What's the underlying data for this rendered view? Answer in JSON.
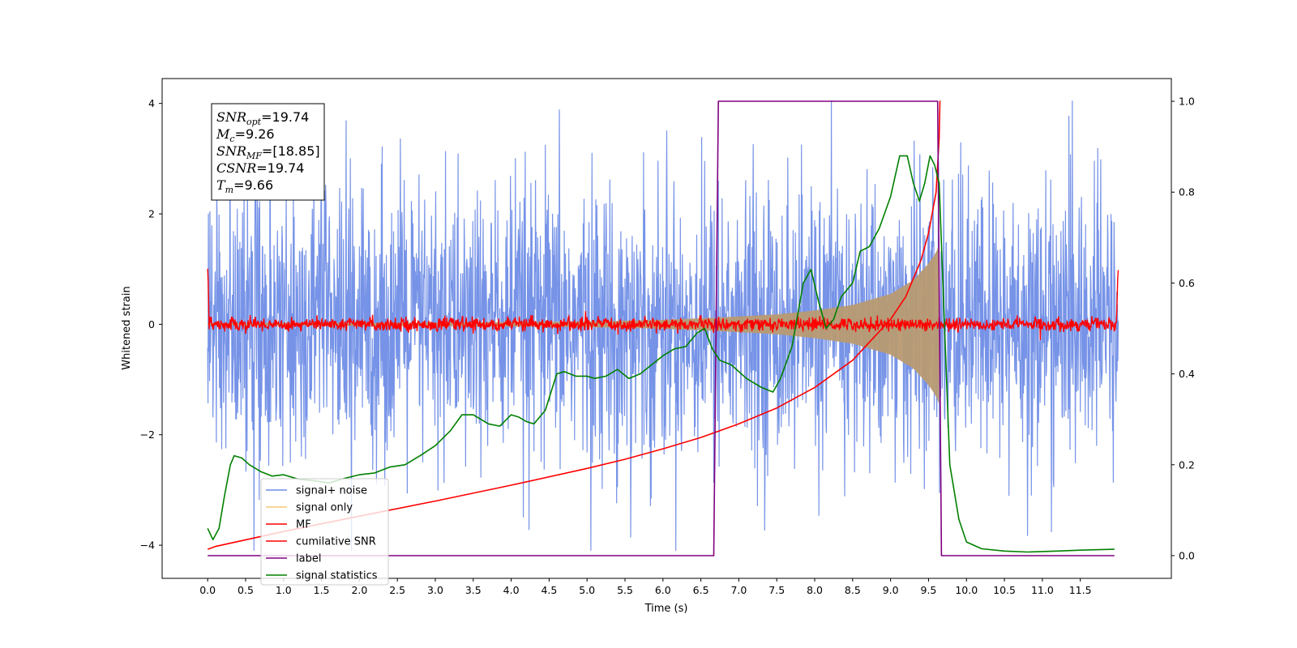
{
  "chart_data": {
    "type": "line",
    "title": "",
    "xlabel": "Time (s)",
    "ylabel": "Whitened strain",
    "xlim": [
      -0.6,
      12.7
    ],
    "ylim": [
      -4.6,
      4.45
    ],
    "y2lim": [
      -0.05,
      1.05
    ],
    "x_ticks": [
      0.0,
      0.5,
      1.0,
      1.5,
      2.0,
      2.5,
      3.0,
      3.5,
      4.0,
      4.5,
      5.0,
      5.5,
      6.0,
      6.5,
      7.0,
      7.5,
      8.0,
      8.5,
      9.0,
      9.5,
      10.0,
      10.5,
      11.0,
      11.5
    ],
    "x_tick_labels": [
      "0.0",
      "0.5",
      "1.0",
      "1.5",
      "2.0",
      "2.5",
      "3.0",
      "3.5",
      "4.0",
      "4.5",
      "5.0",
      "5.5",
      "6.0",
      "6.5",
      "7.0",
      "7.5",
      "8.0",
      "8.5",
      "9.0",
      "9.5",
      "10.0",
      "10.5",
      "11.0",
      "11.5"
    ],
    "y_ticks": [
      -4,
      -2,
      0,
      2,
      4
    ],
    "y_tick_labels": [
      "−4",
      "−2",
      "0",
      "2",
      "4"
    ],
    "y2_ticks": [
      0.0,
      0.2,
      0.4,
      0.6,
      0.8,
      1.0
    ],
    "y2_tick_labels": [
      "0.0",
      "0.2",
      "0.4",
      "0.6",
      "0.8",
      "1.0"
    ],
    "grid": false,
    "legend_position": "bottom-left",
    "colors": {
      "noise": "#6f8de6",
      "signal": "#f5c775",
      "signal_fill": "#b89a72",
      "mf": "#ff0000",
      "csnr": "#ff0000",
      "label": "#800080",
      "stats": "#008000"
    },
    "series": [
      {
        "name": "signal+ noise",
        "axis": "left",
        "color": "#6f8de6",
        "envelope": {
          "x_start": 0.0,
          "x_end": 12.0,
          "typical_amplitude": 2.0,
          "max": 4.05,
          "min": -4.1
        }
      },
      {
        "name": "signal only",
        "axis": "left",
        "color": "#f5c775",
        "envelope": {
          "x": [
            0.0,
            3.0,
            5.0,
            6.0,
            6.7,
            7.5,
            8.0,
            8.5,
            9.0,
            9.3,
            9.5,
            9.6,
            9.64
          ],
          "amplitude": [
            0.02,
            0.03,
            0.05,
            0.08,
            0.12,
            0.18,
            0.25,
            0.35,
            0.55,
            0.8,
            1.1,
            1.3,
            1.45
          ]
        }
      },
      {
        "name": "MF",
        "axis": "left",
        "color": "#ff0000",
        "x": [
          0.0,
          0.02,
          0.05,
          0.1,
          11.97,
          12.0
        ],
        "y": [
          1.0,
          0.1,
          0.0,
          0.0,
          0.0,
          0.9
        ],
        "noise_amplitude": 0.06
      },
      {
        "name": "cumilative SNR",
        "axis": "right",
        "color": "#ff0000",
        "x": [
          0.0,
          0.1,
          1.0,
          2.0,
          3.0,
          4.0,
          5.0,
          5.5,
          6.0,
          6.5,
          7.0,
          7.5,
          8.0,
          8.5,
          9.0,
          9.2,
          9.4,
          9.5,
          9.6,
          9.64,
          9.65,
          9.66
        ],
        "y": [
          0.014,
          0.02,
          0.053,
          0.087,
          0.12,
          0.155,
          0.192,
          0.212,
          0.235,
          0.26,
          0.29,
          0.325,
          0.37,
          0.43,
          0.52,
          0.57,
          0.65,
          0.71,
          0.8,
          0.92,
          1.0,
          1.0
        ]
      },
      {
        "name": "label",
        "axis": "right",
        "color": "#800080",
        "x": [
          0.0,
          6.67,
          6.73,
          9.62,
          9.67,
          11.95
        ],
        "y": [
          0.0,
          0.0,
          1.0,
          1.0,
          0.0,
          0.0
        ]
      },
      {
        "name": "signal statistics",
        "axis": "right",
        "color": "#008000",
        "x": [
          0.0,
          0.07,
          0.15,
          0.22,
          0.3,
          0.35,
          0.45,
          0.55,
          0.7,
          0.85,
          1.0,
          1.2,
          1.4,
          1.6,
          1.8,
          2.0,
          2.2,
          2.4,
          2.6,
          2.8,
          3.0,
          3.2,
          3.35,
          3.5,
          3.6,
          3.7,
          3.85,
          4.0,
          4.1,
          4.2,
          4.3,
          4.45,
          4.6,
          4.7,
          4.85,
          5.0,
          5.1,
          5.25,
          5.4,
          5.55,
          5.7,
          5.85,
          6.0,
          6.15,
          6.3,
          6.45,
          6.55,
          6.65,
          6.75,
          6.9,
          7.1,
          7.3,
          7.45,
          7.55,
          7.7,
          7.85,
          7.95,
          8.05,
          8.15,
          8.25,
          8.35,
          8.5,
          8.6,
          8.72,
          8.85,
          9.0,
          9.12,
          9.22,
          9.3,
          9.38,
          9.45,
          9.52,
          9.58,
          9.64,
          9.7,
          9.78,
          9.9,
          10.0,
          10.2,
          10.5,
          10.8,
          11.2,
          11.5,
          11.95
        ],
        "y": [
          0.06,
          0.035,
          0.06,
          0.13,
          0.2,
          0.22,
          0.215,
          0.2,
          0.185,
          0.175,
          0.178,
          0.168,
          0.165,
          0.16,
          0.17,
          0.178,
          0.182,
          0.195,
          0.2,
          0.22,
          0.242,
          0.275,
          0.31,
          0.31,
          0.3,
          0.29,
          0.285,
          0.31,
          0.305,
          0.295,
          0.29,
          0.32,
          0.4,
          0.405,
          0.395,
          0.395,
          0.39,
          0.395,
          0.41,
          0.39,
          0.4,
          0.42,
          0.44,
          0.455,
          0.46,
          0.49,
          0.5,
          0.455,
          0.43,
          0.42,
          0.39,
          0.37,
          0.36,
          0.39,
          0.46,
          0.6,
          0.63,
          0.56,
          0.5,
          0.52,
          0.57,
          0.6,
          0.67,
          0.68,
          0.72,
          0.79,
          0.88,
          0.88,
          0.82,
          0.78,
          0.82,
          0.88,
          0.86,
          0.82,
          0.55,
          0.2,
          0.08,
          0.03,
          0.015,
          0.01,
          0.008,
          0.01,
          0.012,
          0.014
        ]
      }
    ],
    "annotation": {
      "lines": [
        {
          "var": "SNR",
          "sub": "opt",
          "value": "=19.74"
        },
        {
          "var": "M",
          "sub": "c",
          "value": "=9.26"
        },
        {
          "var": "SNR",
          "sub": "MF",
          "value": "=[18.85]"
        },
        {
          "var": "CSNR",
          "sub": "",
          "value": "=19.74"
        },
        {
          "var": "T",
          "sub": "m",
          "value": "=9.66"
        }
      ]
    },
    "legend": [
      {
        "label": "signal+ noise",
        "color": "#6f8de6"
      },
      {
        "label": "signal only",
        "color": "#f5c775"
      },
      {
        "label": "MF",
        "color": "#ff0000"
      },
      {
        "label": "cumilative SNR",
        "color": "#ff0000"
      },
      {
        "label": "label",
        "color": "#800080"
      },
      {
        "label": "signal statistics",
        "color": "#008000"
      }
    ]
  }
}
